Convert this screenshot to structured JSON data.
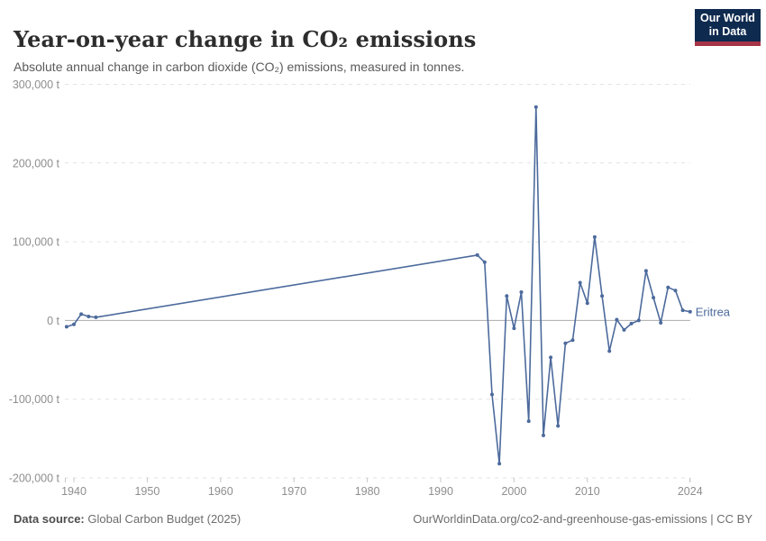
{
  "header": {
    "title": "Year-on-year change in CO₂ emissions",
    "subtitle": "Absolute annual change in carbon dioxide (CO₂) emissions, measured in tonnes.",
    "logo": {
      "line1": "Our World",
      "line2": "in Data",
      "bg_color": "#0e2a4f",
      "stripe_color": "#a63446"
    }
  },
  "footer": {
    "source_label": "Data source:",
    "source_value": " Global Carbon Budget (2025)",
    "credit": "OurWorldinData.org/co2-and-greenhouse-gas-emissions | CC BY"
  },
  "chart_data": {
    "type": "line",
    "title": "Year-on-year change in CO₂ emissions",
    "entity": "Eritrea",
    "unit": "t",
    "xlabel": "",
    "ylabel": "",
    "xlim": [
      1939,
      2024
    ],
    "ylim": [
      -200000,
      300000
    ],
    "grid": "horizontal-dashed",
    "legend_position": "line-end-label",
    "yticks": [
      {
        "value": 300000,
        "label": "300,000 t"
      },
      {
        "value": 200000,
        "label": "200,000 t"
      },
      {
        "value": 100000,
        "label": "100,000 t"
      },
      {
        "value": 0,
        "label": "0 t"
      },
      {
        "value": -100000,
        "label": "-100,000 t"
      },
      {
        "value": -200000,
        "label": "-200,000 t"
      }
    ],
    "xticks": [
      "1940",
      "1950",
      "1960",
      "1970",
      "1980",
      "1990",
      "2000",
      "2010",
      "2024"
    ],
    "colors": {
      "line": "#4c6a9c",
      "grid": "#e2e2e2",
      "zero_line": "#ababab",
      "tick": "#c8c8c8",
      "axis_label": "#8e8e8e",
      "entity_label": "#4c6a9c"
    },
    "series": [
      {
        "name": "Eritrea",
        "points": [
          [
            1939,
            -8000
          ],
          [
            1940,
            -5000
          ],
          [
            1941,
            8000
          ],
          [
            1942,
            5000
          ],
          [
            1943,
            4000
          ],
          [
            1995,
            83000
          ],
          [
            1996,
            74000
          ],
          [
            1997,
            -94000
          ],
          [
            1998,
            -182000
          ],
          [
            1999,
            31000
          ],
          [
            2000,
            -10000
          ],
          [
            2001,
            36000
          ],
          [
            2002,
            -128000
          ],
          [
            2003,
            271000
          ],
          [
            2004,
            -146000
          ],
          [
            2005,
            -47000
          ],
          [
            2006,
            -134000
          ],
          [
            2007,
            -29000
          ],
          [
            2008,
            -25000
          ],
          [
            2009,
            48000
          ],
          [
            2010,
            22000
          ],
          [
            2011,
            106000
          ],
          [
            2012,
            31000
          ],
          [
            2013,
            -39000
          ],
          [
            2014,
            1000
          ],
          [
            2015,
            -12000
          ],
          [
            2016,
            -4000
          ],
          [
            2017,
            0
          ],
          [
            2018,
            63000
          ],
          [
            2019,
            29000
          ],
          [
            2020,
            -3000
          ],
          [
            2021,
            42000
          ],
          [
            2022,
            38000
          ],
          [
            2023,
            13000
          ],
          [
            2024,
            11000
          ]
        ]
      }
    ]
  }
}
